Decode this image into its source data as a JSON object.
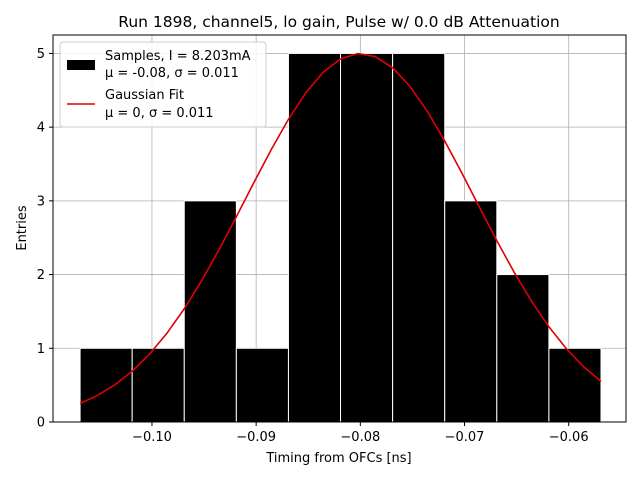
{
  "chart_data": {
    "type": "bar",
    "title": "Run 1898, channel5, lo gain, Pulse w/ 0.0 dB Attenuation",
    "xlabel": "Timing from OFCs [ns]",
    "ylabel": "Entries",
    "xlim": [
      -0.1095,
      -0.0545
    ],
    "ylim": [
      0,
      5.25
    ],
    "grid": true,
    "legend_position": "top-left",
    "x_ticks": [
      -0.1,
      -0.09,
      -0.08,
      -0.07,
      -0.06
    ],
    "x_tick_labels": [
      "−0.10",
      "−0.09",
      "−0.08",
      "−0.07",
      "−0.06"
    ],
    "y_ticks": [
      0,
      1,
      2,
      3,
      4,
      5
    ],
    "y_tick_labels": [
      "0",
      "1",
      "2",
      "3",
      "4",
      "5"
    ],
    "histogram": {
      "bin_edges": [
        -0.1069,
        -0.1019,
        -0.0969,
        -0.0919,
        -0.0869,
        -0.0819,
        -0.0769,
        -0.0719,
        -0.0669,
        -0.0619,
        -0.0569
      ],
      "counts": [
        1,
        1,
        3,
        1,
        5,
        5,
        5,
        3,
        2,
        1
      ],
      "color": "#000000",
      "edgecolor": "#ffffff"
    },
    "fit": {
      "type": "gaussian",
      "mu": -0.08,
      "sigma": 0.011,
      "amplitude": 5,
      "x_range": [
        -0.1069,
        -0.0569
      ],
      "color": "#e00000"
    },
    "legend": [
      {
        "kind": "patch",
        "color": "#000000",
        "line1": "Samples, I = 8.203mA",
        "line2": "μ = -0.08, σ = 0.011"
      },
      {
        "kind": "line",
        "color": "#e00000",
        "line1": "Gaussian Fit",
        "line2": "μ = 0, σ = 0.011"
      }
    ]
  }
}
